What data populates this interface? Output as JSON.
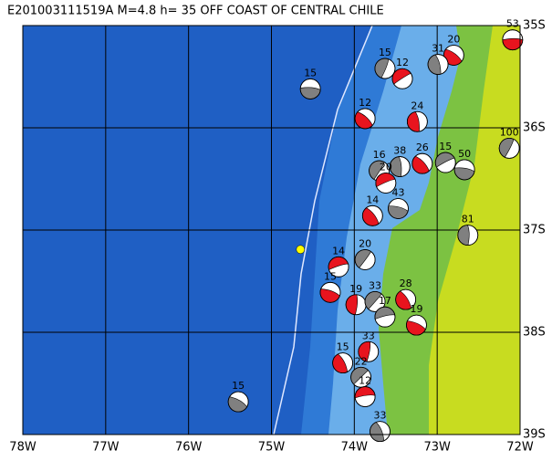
{
  "map": {
    "title": "E201003111519A M=4.8 h= 35 OFF COAST OF CENTRAL CHILE",
    "xlim": [
      -78,
      -72
    ],
    "ylim": [
      -39,
      -35
    ],
    "xticks": [
      {
        "value": -78,
        "label": "78W"
      },
      {
        "value": -77,
        "label": "77W"
      },
      {
        "value": -76,
        "label": "76W"
      },
      {
        "value": -75,
        "label": "75W"
      },
      {
        "value": -74,
        "label": "74W"
      },
      {
        "value": -73,
        "label": "73W"
      },
      {
        "value": -72,
        "label": "72W"
      }
    ],
    "yticks": [
      {
        "value": -35,
        "label": "35S"
      },
      {
        "value": -36,
        "label": "36S"
      },
      {
        "value": -37,
        "label": "37S"
      },
      {
        "value": -38,
        "label": "38S"
      },
      {
        "value": -39,
        "label": "39S"
      }
    ],
    "epicenter": {
      "lon": -74.65,
      "lat": -37.19,
      "color": "#ffff00"
    },
    "events": [
      {
        "label": "53",
        "lon": -72.09,
        "lat": -35.14,
        "color": "#e8141e"
      },
      {
        "label": "20",
        "lon": -72.8,
        "lat": -35.29,
        "color": "#e8141e"
      },
      {
        "label": "31",
        "lon": -72.99,
        "lat": -35.38,
        "color": "#808080"
      },
      {
        "label": "15",
        "lon": -73.63,
        "lat": -35.42,
        "color": "#808080"
      },
      {
        "label": "12",
        "lon": -73.42,
        "lat": -35.52,
        "color": "#e8141e"
      },
      {
        "label": "15",
        "lon": -74.53,
        "lat": -35.62,
        "color": "#808080"
      },
      {
        "label": "12",
        "lon": -73.87,
        "lat": -35.91,
        "color": "#e8141e"
      },
      {
        "label": "24",
        "lon": -73.24,
        "lat": -35.94,
        "color": "#e8141e"
      },
      {
        "label": "100",
        "lon": -72.13,
        "lat": -36.2,
        "color": "#808080"
      },
      {
        "label": "15",
        "lon": -72.9,
        "lat": -36.34,
        "color": "#808080"
      },
      {
        "label": "50",
        "lon": -72.67,
        "lat": -36.41,
        "color": "#808080"
      },
      {
        "label": "26",
        "lon": -73.18,
        "lat": -36.35,
        "color": "#e8141e"
      },
      {
        "label": "38",
        "lon": -73.45,
        "lat": -36.38,
        "color": "#808080"
      },
      {
        "label": "16",
        "lon": -73.7,
        "lat": -36.42,
        "color": "#808080"
      },
      {
        "label": "20",
        "lon": -73.62,
        "lat": -36.54,
        "color": "#e8141e"
      },
      {
        "label": "43",
        "lon": -73.47,
        "lat": -36.79,
        "color": "#808080"
      },
      {
        "label": "14",
        "lon": -73.78,
        "lat": -36.86,
        "color": "#e8141e"
      },
      {
        "label": "81",
        "lon": -72.63,
        "lat": -37.05,
        "color": "#808080"
      },
      {
        "label": "20",
        "lon": -73.87,
        "lat": -37.29,
        "color": "#808080"
      },
      {
        "label": "14",
        "lon": -74.19,
        "lat": -37.36,
        "color": "#e8141e"
      },
      {
        "label": "15",
        "lon": -74.29,
        "lat": -37.61,
        "color": "#e8141e"
      },
      {
        "label": "28",
        "lon": -73.38,
        "lat": -37.68,
        "color": "#e8141e"
      },
      {
        "label": "19",
        "lon": -73.98,
        "lat": -37.73,
        "color": "#e8141e"
      },
      {
        "label": "33",
        "lon": -73.75,
        "lat": -37.7,
        "color": "#808080"
      },
      {
        "label": "17",
        "lon": -73.63,
        "lat": -37.85,
        "color": "#808080"
      },
      {
        "label": "19",
        "lon": -73.25,
        "lat": -37.93,
        "color": "#e8141e"
      },
      {
        "label": "15",
        "lon": -74.14,
        "lat": -38.3,
        "color": "#e8141e"
      },
      {
        "label": "33",
        "lon": -73.83,
        "lat": -38.19,
        "color": "#e8141e"
      },
      {
        "label": "22",
        "lon": -73.92,
        "lat": -38.44,
        "color": "#808080"
      },
      {
        "label": "12",
        "lon": -73.87,
        "lat": -38.63,
        "color": "#e8141e"
      },
      {
        "label": "15",
        "lon": -75.4,
        "lat": -38.68,
        "color": "#808080"
      },
      {
        "label": "33",
        "lon": -73.69,
        "lat": -38.97,
        "color": "#808080"
      }
    ]
  }
}
